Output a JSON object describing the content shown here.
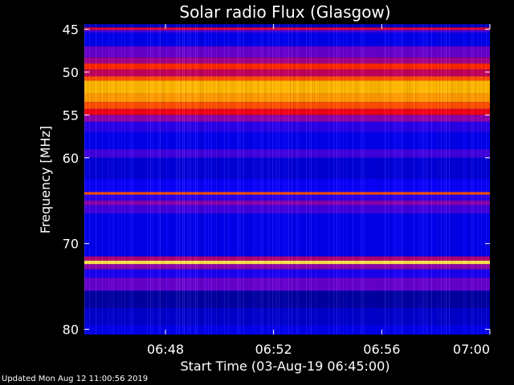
{
  "chart_data": {
    "type": "heatmap",
    "title": "Solar radio Flux (Glasgow)",
    "xlabel": "Start Time (03-Aug-19 06:45:00)",
    "ylabel": "Frequency [MHz]",
    "x_range": [
      "06:45",
      "07:00"
    ],
    "y_range_mhz": [
      44.4,
      80.6
    ],
    "x_ticks": [
      "06:48",
      "06:52",
      "06:56",
      "07:00"
    ],
    "y_ticks": [
      45,
      50,
      55,
      60,
      70,
      80
    ],
    "colormap": [
      "#000050",
      "#0000ff",
      "#8000c0",
      "#ff0000",
      "#ff8000",
      "#ffd000",
      "#ffffc0"
    ],
    "bands": [
      {
        "from": 44.4,
        "to": 44.8,
        "level": 0.1
      },
      {
        "from": 44.8,
        "to": 45.1,
        "level": 0.45
      },
      {
        "from": 45.1,
        "to": 45.4,
        "level": 0.25
      },
      {
        "from": 45.4,
        "to": 47.0,
        "level": 0.15
      },
      {
        "from": 47.0,
        "to": 48.3,
        "level": 0.3
      },
      {
        "from": 48.3,
        "to": 49.0,
        "level": 0.38
      },
      {
        "from": 49.0,
        "to": 49.7,
        "level": 0.55
      },
      {
        "from": 49.7,
        "to": 50.5,
        "level": 0.42
      },
      {
        "from": 50.5,
        "to": 51.0,
        "level": 0.6
      },
      {
        "from": 51.0,
        "to": 52.5,
        "level": 0.78
      },
      {
        "from": 52.5,
        "to": 53.5,
        "level": 0.72
      },
      {
        "from": 53.5,
        "to": 54.3,
        "level": 0.6
      },
      {
        "from": 54.3,
        "to": 55.0,
        "level": 0.48
      },
      {
        "from": 55.0,
        "to": 55.8,
        "level": 0.35
      },
      {
        "from": 55.8,
        "to": 57.0,
        "level": 0.22
      },
      {
        "from": 57.0,
        "to": 59.0,
        "level": 0.15
      },
      {
        "from": 59.0,
        "to": 60.0,
        "level": 0.25
      },
      {
        "from": 60.0,
        "to": 62.5,
        "level": 0.13
      },
      {
        "from": 62.5,
        "to": 64.0,
        "level": 0.18
      },
      {
        "from": 64.0,
        "to": 64.3,
        "level": 0.6
      },
      {
        "from": 64.3,
        "to": 65.0,
        "level": 0.22
      },
      {
        "from": 65.0,
        "to": 65.5,
        "level": 0.35
      },
      {
        "from": 65.5,
        "to": 66.5,
        "level": 0.25
      },
      {
        "from": 66.5,
        "to": 71.5,
        "level": 0.15
      },
      {
        "from": 71.5,
        "to": 72.0,
        "level": 0.4
      },
      {
        "from": 72.0,
        "to": 72.4,
        "level": 0.9
      },
      {
        "from": 72.4,
        "to": 73.0,
        "level": 0.35
      },
      {
        "from": 73.0,
        "to": 74.0,
        "level": 0.2
      },
      {
        "from": 74.0,
        "to": 75.5,
        "level": 0.3
      },
      {
        "from": 75.5,
        "to": 77.5,
        "level": 0.08
      },
      {
        "from": 77.5,
        "to": 79.5,
        "level": 0.12
      },
      {
        "from": 79.5,
        "to": 80.6,
        "level": 0.15
      }
    ]
  },
  "footer": {
    "updated": "Updated Mon Aug 12 11:00:56 2019"
  }
}
